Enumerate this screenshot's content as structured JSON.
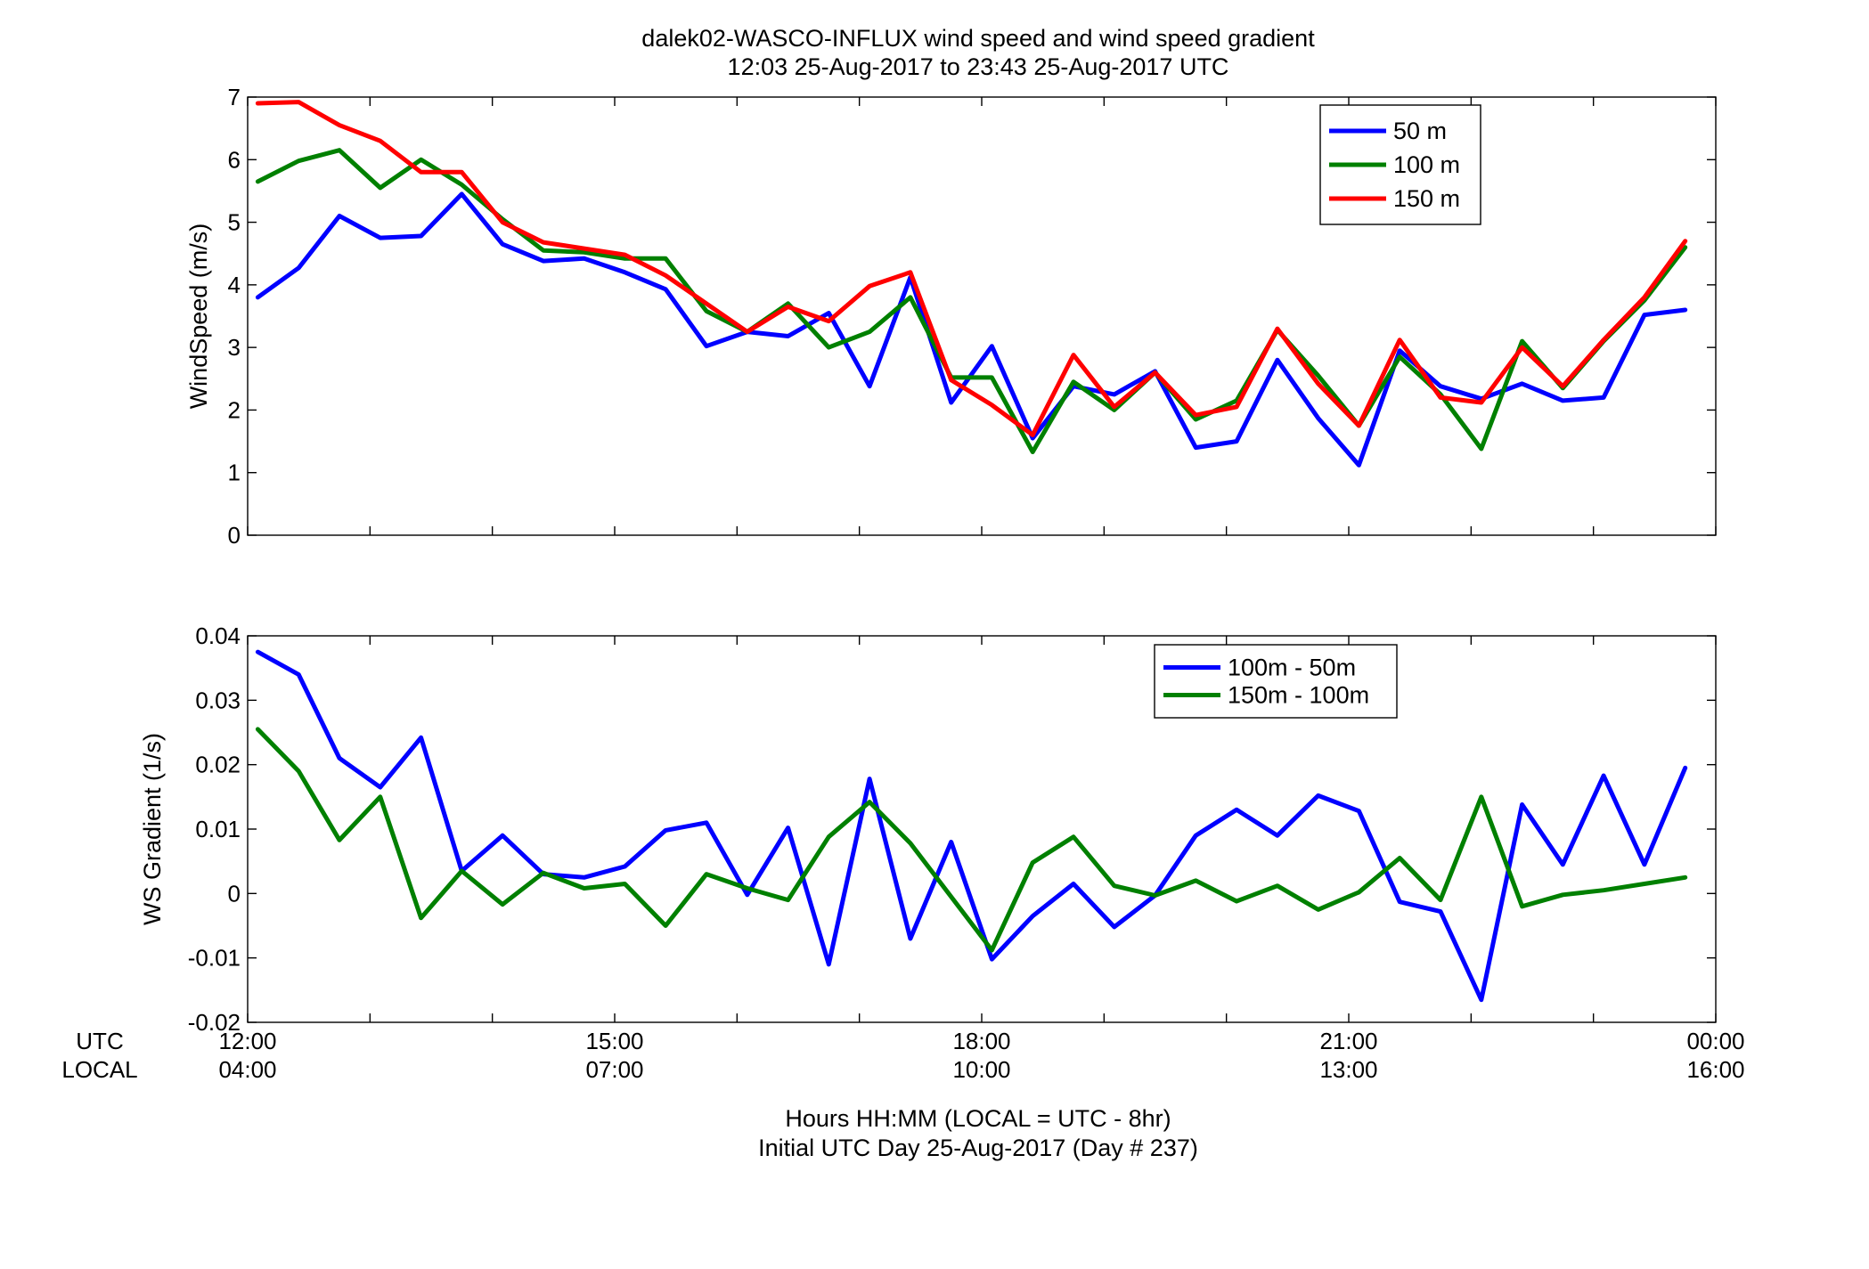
{
  "title": {
    "line1": "dalek02-WASCO-INFLUX  wind speed and wind speed gradient",
    "line2": "12:03 25-Aug-2017 to 23:43 25-Aug-2017  UTC"
  },
  "xaxis": {
    "row_labels": [
      "UTC",
      "LOCAL"
    ],
    "utc_ticks": [
      "12:00",
      "15:00",
      "18:00",
      "21:00",
      "00:00"
    ],
    "local_ticks": [
      "04:00",
      "07:00",
      "10:00",
      "13:00",
      "16:00"
    ],
    "label_line1": "Hours HH:MM  (LOCAL = UTC - 8hr)",
    "label_line2": "Initial UTC Day 25-Aug-2017 (Day # 237)"
  },
  "chart_data": [
    {
      "type": "line",
      "ylabel": "WindSpeed (m/s)",
      "xlim": [
        12,
        24
      ],
      "ylim": [
        0,
        7
      ],
      "yticks": [
        "0",
        "1",
        "2",
        "3",
        "4",
        "5",
        "6",
        "7"
      ],
      "grid": false,
      "legend_position": "top-right",
      "x": [
        12.0833,
        12.4167,
        12.75,
        13.0833,
        13.4167,
        13.75,
        14.0833,
        14.4167,
        14.75,
        15.0833,
        15.4167,
        15.75,
        16.0833,
        16.4167,
        16.75,
        17.0833,
        17.4167,
        17.75,
        18.0833,
        18.4167,
        18.75,
        19.0833,
        19.4167,
        19.75,
        20.0833,
        20.4167,
        20.75,
        21.0833,
        21.4167,
        21.75,
        22.0833,
        22.4167,
        22.75,
        23.0833,
        23.4167,
        23.75
      ],
      "series": [
        {
          "name": "50 m",
          "color": "#0000ff",
          "values": [
            3.8,
            4.27,
            5.1,
            4.75,
            4.78,
            5.45,
            4.65,
            4.38,
            4.42,
            4.2,
            3.93,
            3.02,
            3.25,
            3.18,
            3.55,
            2.38,
            4.12,
            2.12,
            3.02,
            1.55,
            2.38,
            2.25,
            2.62,
            1.4,
            1.5,
            2.8,
            1.87,
            1.12,
            2.95,
            2.38,
            2.18,
            2.42,
            2.15,
            2.2,
            3.52,
            3.6
          ]
        },
        {
          "name": "100 m",
          "color": "#008000",
          "values": [
            5.65,
            5.98,
            6.15,
            5.55,
            6.0,
            5.6,
            5.05,
            4.55,
            4.52,
            4.42,
            4.42,
            3.58,
            3.25,
            3.7,
            3.0,
            3.25,
            3.8,
            2.52,
            2.52,
            1.33,
            2.45,
            2.0,
            2.6,
            1.85,
            2.15,
            3.28,
            2.55,
            1.75,
            2.85,
            2.25,
            1.38,
            3.1,
            2.35,
            3.1,
            3.75,
            4.6
          ]
        },
        {
          "name": "150 m",
          "color": "#ff0000",
          "values": [
            6.9,
            6.92,
            6.55,
            6.3,
            5.8,
            5.8,
            5.0,
            4.68,
            4.58,
            4.48,
            4.15,
            3.7,
            3.25,
            3.65,
            3.42,
            3.98,
            4.2,
            2.48,
            2.08,
            1.6,
            2.88,
            2.05,
            2.6,
            1.92,
            2.05,
            3.3,
            2.42,
            1.75,
            3.12,
            2.2,
            2.12,
            3.0,
            2.38,
            3.12,
            3.8,
            4.7
          ]
        }
      ]
    },
    {
      "type": "line",
      "ylabel": "WS Gradient (1/s)",
      "xlim": [
        12,
        24
      ],
      "ylim": [
        -0.02,
        0.04
      ],
      "yticks": [
        "-0.02",
        "-0.01",
        "0",
        "0.01",
        "0.02",
        "0.03",
        "0.04"
      ],
      "grid": false,
      "legend_position": "top-right",
      "x": [
        12.0833,
        12.4167,
        12.75,
        13.0833,
        13.4167,
        13.75,
        14.0833,
        14.4167,
        14.75,
        15.0833,
        15.4167,
        15.75,
        16.0833,
        16.4167,
        16.75,
        17.0833,
        17.4167,
        17.75,
        18.0833,
        18.4167,
        18.75,
        19.0833,
        19.4167,
        19.75,
        20.0833,
        20.4167,
        20.75,
        21.0833,
        21.4167,
        21.75,
        22.0833,
        22.4167,
        22.75,
        23.0833,
        23.4167,
        23.75
      ],
      "series": [
        {
          "name": "100m - 50m",
          "color": "#0000ff",
          "values": [
            0.0375,
            0.034,
            0.021,
            0.0165,
            0.0242,
            0.0035,
            0.009,
            0.003,
            0.0025,
            0.0042,
            0.0098,
            0.011,
            -0.0002,
            0.0102,
            -0.011,
            0.0178,
            -0.007,
            0.008,
            -0.0102,
            -0.0035,
            0.0015,
            -0.0052,
            -0.0003,
            0.009,
            0.013,
            0.009,
            0.0152,
            0.0128,
            -0.0013,
            -0.0028,
            -0.0165,
            0.0138,
            0.0045,
            0.0183,
            0.0045,
            0.0195
          ]
        },
        {
          "name": "150m - 100m",
          "color": "#008000",
          "values": [
            0.0255,
            0.019,
            0.0083,
            0.015,
            -0.0038,
            0.0035,
            -0.0017,
            0.0032,
            0.0008,
            0.0015,
            -0.005,
            0.003,
            0.0008,
            -0.001,
            0.0088,
            0.0142,
            0.0078,
            -0.0005,
            -0.0088,
            0.0048,
            0.0088,
            0.0012,
            -0.0003,
            0.002,
            -0.0012,
            0.0012,
            -0.0025,
            0.0002,
            0.0055,
            -0.001,
            0.015,
            -0.002,
            -0.0002,
            0.0005,
            0.0015,
            0.0025
          ]
        }
      ]
    }
  ]
}
